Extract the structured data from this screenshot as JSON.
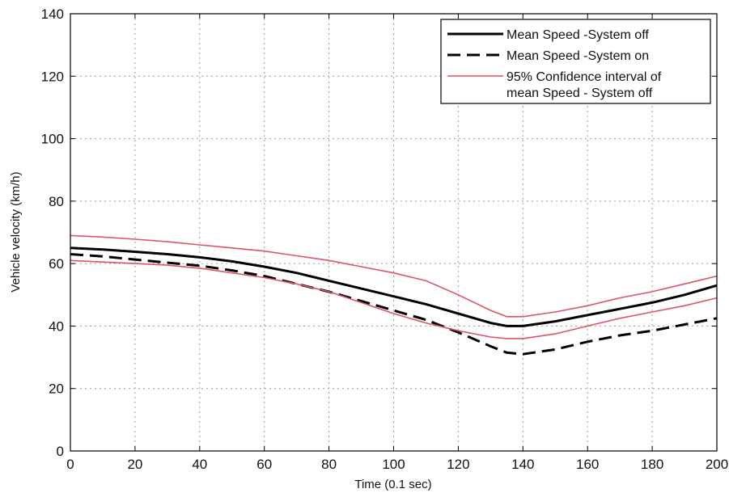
{
  "chart_data": {
    "type": "line",
    "title": "",
    "xlabel": "Time (0.1 sec)",
    "ylabel": "Vehicle velocity (km/h)",
    "xlim": [
      0,
      200
    ],
    "ylim": [
      0,
      140
    ],
    "xticks": [
      0,
      20,
      40,
      60,
      80,
      100,
      120,
      140,
      160,
      180,
      200
    ],
    "yticks": [
      0,
      20,
      40,
      60,
      80,
      100,
      120,
      140
    ],
    "grid": true,
    "legend_position": "top-right",
    "series": [
      {
        "name": "Mean Speed -System off",
        "color": "#000000",
        "style": "solid",
        "x": [
          0,
          10,
          20,
          30,
          40,
          50,
          60,
          70,
          80,
          90,
          100,
          110,
          120,
          130,
          135,
          140,
          150,
          160,
          170,
          180,
          190,
          200
        ],
        "y": [
          65,
          64.5,
          63.8,
          63,
          62,
          60.7,
          59,
          57,
          54.5,
          52,
          49.5,
          47,
          44,
          41,
          40,
          40,
          41.5,
          43.5,
          45.5,
          47.5,
          50,
          53
        ]
      },
      {
        "name": "Mean Speed -System on",
        "color": "#000000",
        "style": "dashed",
        "x": [
          0,
          10,
          20,
          30,
          40,
          50,
          60,
          70,
          80,
          90,
          100,
          110,
          120,
          130,
          135,
          140,
          150,
          160,
          170,
          180,
          190,
          200
        ],
        "y": [
          63,
          62.3,
          61.3,
          60.3,
          59.3,
          57.8,
          56,
          53.5,
          51,
          48,
          45,
          42,
          38,
          33.5,
          31.5,
          31,
          32.5,
          35,
          37,
          38.5,
          40.5,
          42.5
        ]
      },
      {
        "name": "95% Confidence interval of mean Speed - System off",
        "color": "#e0526a",
        "style": "solid",
        "x": [
          0,
          10,
          20,
          30,
          40,
          50,
          60,
          70,
          80,
          90,
          100,
          110,
          120,
          130,
          135,
          140,
          150,
          160,
          170,
          180,
          190,
          200
        ],
        "y": [
          69,
          68.5,
          67.8,
          67,
          66,
          65,
          64,
          62.5,
          61,
          59,
          57,
          54.5,
          50,
          45,
          43,
          43,
          44.5,
          46.5,
          49,
          51,
          53.5,
          56
        ]
      },
      {
        "name": "",
        "color": "#e0526a",
        "style": "solid",
        "x": [
          0,
          10,
          20,
          30,
          40,
          50,
          60,
          70,
          80,
          90,
          100,
          110,
          120,
          130,
          135,
          140,
          150,
          160,
          170,
          180,
          190,
          200
        ],
        "y": [
          61,
          60.5,
          60,
          59.5,
          58.5,
          57,
          55.5,
          53.5,
          51,
          47.5,
          44,
          41,
          38.5,
          36.5,
          36,
          36,
          37.5,
          40,
          42.5,
          44.5,
          46.5,
          49
        ]
      }
    ],
    "legend": [
      {
        "label_lines": [
          "Mean Speed -System off"
        ],
        "series_index": 0
      },
      {
        "label_lines": [
          "Mean Speed -System on"
        ],
        "series_index": 1
      },
      {
        "label_lines": [
          "95% Confidence interval of",
          "mean Speed - System off"
        ],
        "series_index": 2
      }
    ]
  }
}
